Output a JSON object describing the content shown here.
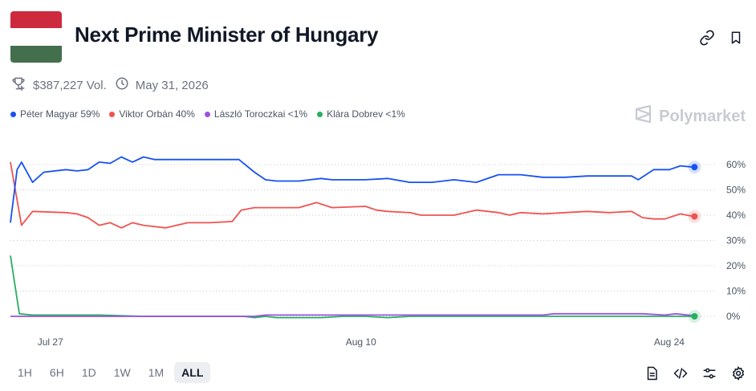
{
  "header": {
    "title": "Next Prime Minister of Hungary",
    "flag_colors": [
      "#cd2a3e",
      "#ffffff",
      "#436f4d"
    ],
    "link_icon": "link-icon",
    "bookmark_icon": "bookmark-icon"
  },
  "meta": {
    "volume": "$387,227 Vol.",
    "date": "May 31, 2026",
    "volume_icon": "trophy-icon",
    "date_icon": "clock-icon"
  },
  "legend": [
    {
      "label": "Péter Magyar 59%",
      "color": "#1652f0"
    },
    {
      "label": "Viktor Orbán 40%",
      "color": "#ef5350"
    },
    {
      "label": "László Toroczkai <1%",
      "color": "#9b51e0"
    },
    {
      "label": "Klára Dobrev <1%",
      "color": "#27ae60"
    }
  ],
  "brand": {
    "name": "Polymarket"
  },
  "chart_data": {
    "type": "line",
    "x_ticks": [
      "Jul 27",
      "Aug 10",
      "Aug 24"
    ],
    "y_ticks": [
      "0%",
      "10%",
      "20%",
      "30%",
      "40%",
      "50%",
      "60%"
    ],
    "ylim": [
      0,
      62
    ],
    "grid": true,
    "series": [
      {
        "name": "Péter Magyar",
        "color": "#1652f0",
        "points": [
          [
            0,
            37
          ],
          [
            0.3,
            58
          ],
          [
            0.5,
            61
          ],
          [
            1,
            53
          ],
          [
            1.5,
            57
          ],
          [
            2.5,
            58
          ],
          [
            3,
            57.5
          ],
          [
            3.5,
            58
          ],
          [
            4,
            61
          ],
          [
            4.5,
            60.5
          ],
          [
            5,
            63
          ],
          [
            5.5,
            61
          ],
          [
            6,
            63
          ],
          [
            6.5,
            62
          ],
          [
            10.3,
            62
          ],
          [
            11,
            57
          ],
          [
            11.5,
            54
          ],
          [
            12,
            53.5
          ],
          [
            13,
            53.5
          ],
          [
            14,
            54.5
          ],
          [
            14.5,
            54
          ],
          [
            15,
            54
          ],
          [
            16,
            54
          ],
          [
            17,
            54.5
          ],
          [
            18,
            53
          ],
          [
            19,
            53
          ],
          [
            20,
            54
          ],
          [
            21,
            53
          ],
          [
            22,
            56
          ],
          [
            23,
            56
          ],
          [
            24,
            55
          ],
          [
            25,
            55
          ],
          [
            26,
            55.5
          ],
          [
            27,
            55.5
          ],
          [
            28,
            55.5
          ],
          [
            28.3,
            54
          ],
          [
            29,
            58
          ],
          [
            29.7,
            58
          ],
          [
            30.2,
            59.5
          ],
          [
            30.8,
            59
          ]
        ]
      },
      {
        "name": "Viktor Orbán",
        "color": "#ef5350",
        "points": [
          [
            0,
            61
          ],
          [
            0.5,
            36
          ],
          [
            1,
            41.5
          ],
          [
            2.5,
            41
          ],
          [
            3,
            40.5
          ],
          [
            3.5,
            39
          ],
          [
            4,
            36
          ],
          [
            4.5,
            37
          ],
          [
            5,
            35
          ],
          [
            5.5,
            37
          ],
          [
            6,
            36
          ],
          [
            7,
            35
          ],
          [
            8,
            37
          ],
          [
            9,
            37
          ],
          [
            10,
            37.5
          ],
          [
            10.4,
            42
          ],
          [
            11,
            43
          ],
          [
            13,
            43
          ],
          [
            13.8,
            45
          ],
          [
            14.5,
            43
          ],
          [
            16,
            43.5
          ],
          [
            16.5,
            42
          ],
          [
            17,
            41.5
          ],
          [
            18,
            41
          ],
          [
            18.5,
            40
          ],
          [
            20,
            40
          ],
          [
            21,
            42
          ],
          [
            22,
            41
          ],
          [
            22.5,
            40
          ],
          [
            23,
            41
          ],
          [
            24,
            40.5
          ],
          [
            25,
            41
          ],
          [
            26,
            41.5
          ],
          [
            27,
            41
          ],
          [
            28,
            41.5
          ],
          [
            28.5,
            39
          ],
          [
            29,
            38.5
          ],
          [
            29.5,
            38.5
          ],
          [
            30.2,
            40.5
          ],
          [
            30.8,
            39.5
          ]
        ]
      },
      {
        "name": "László Toroczkai",
        "color": "#9b51e0",
        "points": [
          [
            0,
            0
          ],
          [
            11,
            0
          ],
          [
            11.5,
            0.5
          ],
          [
            24,
            0.5
          ],
          [
            24.5,
            1
          ],
          [
            28.5,
            1
          ],
          [
            29.5,
            0.5
          ],
          [
            30,
            1
          ],
          [
            30.8,
            0.3
          ]
        ]
      },
      {
        "name": "Klára Dobrev",
        "color": "#27ae60",
        "points": [
          [
            0,
            24
          ],
          [
            0.4,
            1
          ],
          [
            1,
            0.5
          ],
          [
            4,
            0.5
          ],
          [
            6,
            0
          ],
          [
            10.5,
            0
          ],
          [
            11,
            -0.5
          ],
          [
            11.5,
            0
          ],
          [
            12,
            -0.5
          ],
          [
            14,
            -0.5
          ],
          [
            15,
            0
          ],
          [
            16,
            0
          ],
          [
            17,
            -0.5
          ],
          [
            18,
            0
          ],
          [
            20,
            0
          ],
          [
            22,
            0
          ],
          [
            24,
            0
          ],
          [
            26,
            0
          ],
          [
            28,
            0
          ],
          [
            30,
            0
          ],
          [
            30.8,
            0
          ]
        ]
      }
    ],
    "x_tick_positions": [
      1.8,
      15.8,
      29.7
    ],
    "x_domain": [
      0,
      31.8
    ]
  },
  "controls": {
    "ranges": [
      "1H",
      "6H",
      "1D",
      "1W",
      "1M",
      "ALL"
    ],
    "active": "ALL",
    "icons": [
      "document-icon",
      "embed-code-icon",
      "sliders-icon",
      "settings-icon"
    ]
  }
}
